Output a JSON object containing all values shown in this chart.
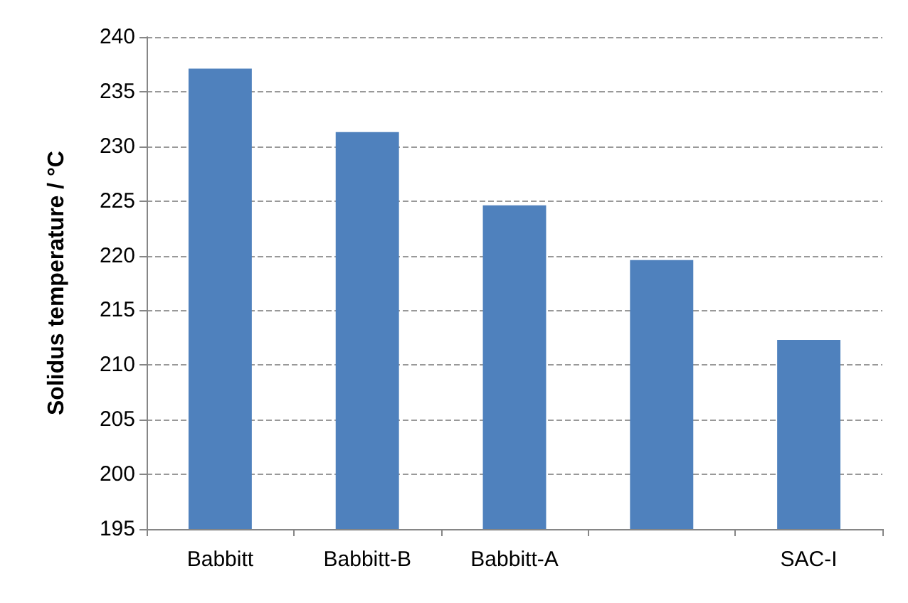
{
  "chart_data": {
    "type": "bar",
    "ylabel": "Solidus temperature / °C",
    "categories": [
      "Babbitt",
      "Babbitt-B",
      "Babbitt-A",
      null,
      "SAC-I"
    ],
    "values": [
      237.1,
      231.3,
      224.6,
      219.6,
      212.3
    ],
    "color": "#4f81bd",
    "ylim": [
      195,
      240
    ],
    "yticks": [
      195,
      200,
      205,
      210,
      215,
      220,
      225,
      230,
      235,
      240
    ],
    "grid": "y"
  }
}
